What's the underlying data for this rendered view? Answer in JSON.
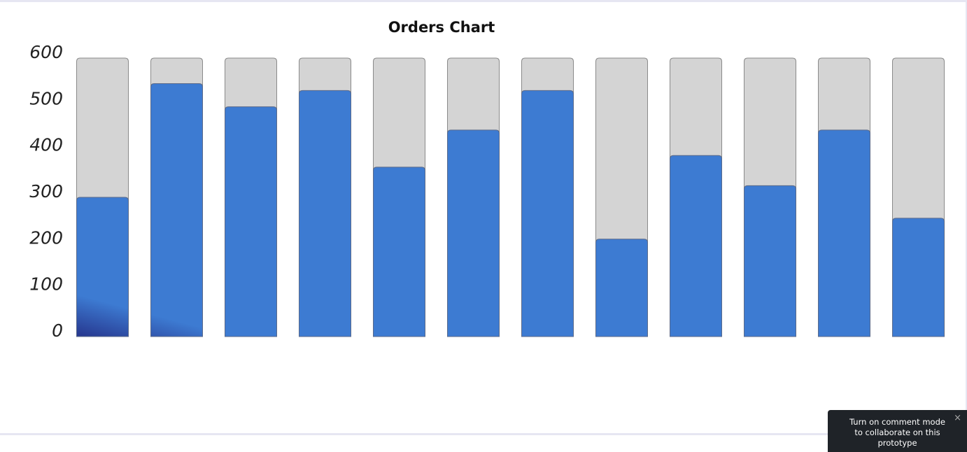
{
  "chart_data": {
    "type": "bar",
    "title": "Orders Chart",
    "categories": [
      null,
      null,
      null,
      null,
      null,
      null,
      null,
      null,
      null,
      null,
      null,
      null
    ],
    "values": [
      300,
      545,
      495,
      530,
      365,
      445,
      530,
      210,
      390,
      325,
      445,
      255
    ],
    "color": "#3d7bd2",
    "color_bottom": "#1b146c",
    "track_color": "#d4d4d4",
    "ylim": [
      0,
      600
    ],
    "yticks": [
      0,
      100,
      200,
      300,
      400,
      500,
      600
    ],
    "grid": false
  },
  "overlay": {
    "text": "Turn on comment mode to collaborate on this prototype",
    "close": "×"
  }
}
